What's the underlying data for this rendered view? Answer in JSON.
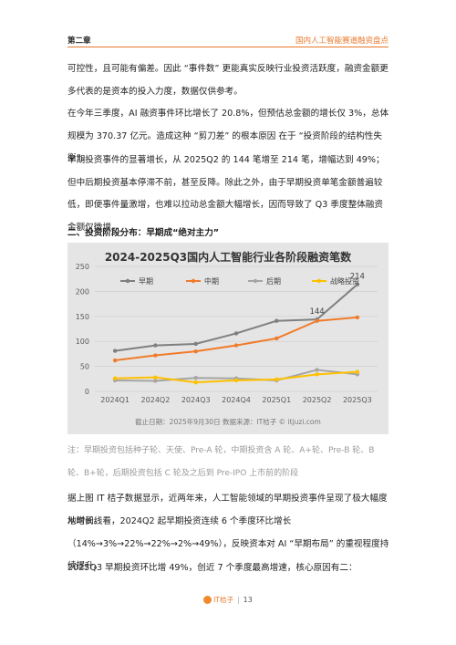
{
  "header": {
    "chapter": "第二章",
    "topic": "国内人工智能赛道融资盘点"
  },
  "paragraphs": {
    "p1": "可控性，且可能有偏差。因此 “事件数” 更能真实反映行业投资活跃度，融资金额更多代表的是资本的投入力度，数据仅供参考。",
    "p2": "在今年三季度，AI 融资事件环比增长了 20.8%，但预估总金额的增长仅 3%，总体规模为 370.37 亿元。造成这种 “剪刀差” 的根本原因 在于 “投资阶段的结构性失衡”。",
    "p3": "早期投资事件的显著增长，从 2025Q2 的 144 笔增至 214 笔，增幅达到 49%；但中后期投资基本停滞不前，甚至反降。除此之外，由于早期投资单笔金额普遍较低，即便事件量激增，也难以拉动总金额大幅增长，因而导致了 Q3 季度整体融资金额仅微增。",
    "heading": "二、投资阶段分布：早期成“绝对主力”",
    "note": "注：早期投资包括种子轮、天使、Pre-A 轮，中期投资含 A 轮、A+轮、Pre-B 轮、B 轮、B+轮，后期投资包括 C 轮及之后到 Pre-IPO 上市前的阶段",
    "p4": "据上图 IT 桔子数据显示，近两年来，人工智能领域的早期投资事件呈现了极大幅度地增长。",
    "p5": "从时间线看，2024Q2 起早期投资连续 6 个季度环比增长（14%→3%→22%→22%→2%→49%），反映资本对 AI “早期布局” 的重视程度持续提升。",
    "p6": "2025Q3 早期投资环比增 49%，创近 7 个季度最高增速，核心原因有二："
  },
  "chart_data": {
    "type": "line",
    "title": "2024-2025Q3国内人工智能行业各阶段融资笔数",
    "categories": [
      "2024Q1",
      "2024Q2",
      "2024Q3",
      "2024Q4",
      "2025Q1",
      "2025Q2",
      "2025Q3"
    ],
    "series": [
      {
        "name": "早期",
        "color": "#7f7f7f",
        "values": [
          81,
          92,
          95,
          116,
          141,
          144,
          214
        ]
      },
      {
        "name": "中期",
        "color": "#f07b2a",
        "values": [
          62,
          72,
          80,
          92,
          106,
          141,
          148
        ]
      },
      {
        "name": "后期",
        "color": "#a5a5a5",
        "values": [
          22,
          21,
          27,
          26,
          22,
          43,
          34
        ]
      },
      {
        "name": "战略投资",
        "color": "#ffc000",
        "values": [
          26,
          28,
          18,
          22,
          24,
          34,
          39
        ]
      }
    ],
    "data_labels": [
      {
        "series": "早期",
        "index": 5,
        "text": "144"
      },
      {
        "series": "早期",
        "index": 6,
        "text": "214"
      }
    ],
    "ylim": [
      0,
      250
    ],
    "yticks": [
      0,
      50,
      100,
      150,
      200,
      250
    ],
    "grid": true,
    "legend": "top",
    "footnote": "截止日期：2025年9月30日    数据来源：IT桔子 © itjuzi.com"
  },
  "footer": {
    "brand": "IT桔子",
    "page": "13"
  }
}
